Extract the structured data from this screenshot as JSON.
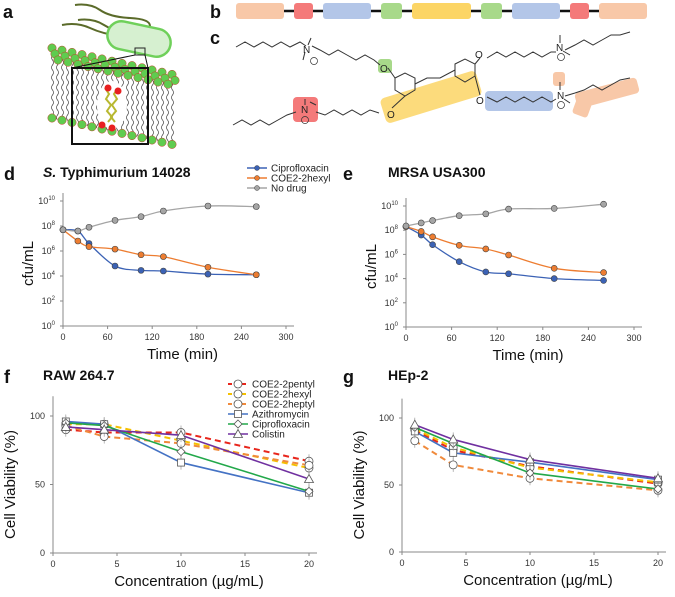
{
  "panels": {
    "a": {
      "letter": "a"
    },
    "b": {
      "letter": "b",
      "blocks": [
        {
          "name": "hexyl-tail",
          "color": "#f8c8a8"
        },
        {
          "name": "ammonium",
          "color": "#f47a7a"
        },
        {
          "name": "linker",
          "color": "#b3c6e8"
        },
        {
          "name": "ether",
          "color": "#a8d98a"
        },
        {
          "name": "stilbene-core",
          "color": "#fcd565"
        },
        {
          "name": "ether",
          "color": "#a8d98a"
        },
        {
          "name": "linker",
          "color": "#b3c6e8"
        },
        {
          "name": "ammonium",
          "color": "#f47a7a"
        },
        {
          "name": "hexyl-tail",
          "color": "#f8c8a8"
        }
      ]
    },
    "c": {
      "letter": "c",
      "atoms": {
        "oxygen": "O",
        "nitrogen": "N",
        "charge": "+"
      }
    },
    "d": {
      "letter": "d",
      "title_italic": "S.",
      "title_rest": " Typhimurium 14028"
    },
    "e": {
      "letter": "e",
      "title": "MRSA USA300"
    },
    "f": {
      "letter": "f",
      "title": "RAW 264.7"
    },
    "g": {
      "letter": "g",
      "title": "HEp-2"
    }
  },
  "chart_data": [
    {
      "id": "d",
      "type": "line",
      "title": "S. Typhimurium 14028",
      "xlabel": "Time (min)",
      "ylabel": "cfu/mL",
      "yscale": "log",
      "xlim": [
        0,
        300
      ],
      "ylim_exp": [
        0,
        10
      ],
      "xticks": [
        "0",
        "60",
        "120",
        "180",
        "240",
        "300"
      ],
      "yticks": [
        "10",
        "10",
        "10",
        "10",
        "10",
        "10"
      ],
      "ytick_exps": [
        "0",
        "2",
        "4",
        "6",
        "8",
        "10"
      ],
      "legend": "top-right",
      "series": [
        {
          "name": "Ciprofloxacin",
          "color": "#3b62b5",
          "x": [
            0,
            20,
            35,
            70,
            105,
            135,
            195,
            260
          ],
          "log10_y": [
            7.7,
            7.6,
            6.6,
            4.8,
            4.45,
            4.4,
            4.15,
            4.1
          ]
        },
        {
          "name": "COE2-2hexyl",
          "color": "#ed7d31",
          "x": [
            0,
            20,
            35,
            70,
            105,
            135,
            195,
            260
          ],
          "log10_y": [
            7.7,
            6.8,
            6.35,
            6.15,
            5.7,
            5.55,
            4.7,
            4.1
          ]
        },
        {
          "name": "No drug",
          "color": "#a5a5a5",
          "x": [
            0,
            20,
            35,
            70,
            105,
            135,
            195,
            260
          ],
          "log10_y": [
            7.7,
            7.6,
            7.9,
            8.45,
            8.75,
            9.2,
            9.6,
            9.55
          ]
        }
      ]
    },
    {
      "id": "e",
      "type": "line",
      "title": "MRSA USA300",
      "xlabel": "Time (min)",
      "ylabel": "cfu/mL",
      "yscale": "log",
      "xlim": [
        0,
        300
      ],
      "ylim_exp": [
        0,
        10
      ],
      "xticks": [
        "0",
        "60",
        "120",
        "180",
        "240",
        "300"
      ],
      "yticks": [
        "10",
        "10",
        "10",
        "10",
        "10",
        "10"
      ],
      "ytick_exps": [
        "0",
        "2",
        "4",
        "6",
        "8",
        "10"
      ],
      "series": [
        {
          "name": "Ciprofloxacin",
          "color": "#3b62b5",
          "x": [
            0,
            20,
            35,
            70,
            105,
            135,
            195,
            260
          ],
          "log10_y": [
            8.3,
            7.6,
            6.8,
            5.4,
            4.55,
            4.4,
            4.0,
            3.85
          ]
        },
        {
          "name": "COE2-2hexyl",
          "color": "#ed7d31",
          "x": [
            0,
            20,
            35,
            70,
            105,
            135,
            195,
            260
          ],
          "log10_y": [
            8.3,
            7.9,
            7.45,
            6.75,
            6.45,
            5.95,
            4.85,
            4.5
          ]
        },
        {
          "name": "No drug",
          "color": "#a5a5a5",
          "x": [
            0,
            20,
            35,
            70,
            105,
            135,
            195,
            260
          ],
          "log10_y": [
            8.35,
            8.6,
            8.8,
            9.2,
            9.35,
            9.75,
            9.8,
            10.15
          ]
        }
      ]
    },
    {
      "id": "f",
      "type": "line",
      "title": "RAW 264.7",
      "xlabel": "Concentration (µg/mL)",
      "ylabel": "Cell Viability (%)",
      "xlim": [
        0,
        20
      ],
      "ylim": [
        0,
        110
      ],
      "xticks": [
        "0",
        "5",
        "10",
        "15",
        "20"
      ],
      "yticks": [
        "0",
        "50",
        "100"
      ],
      "legend": "top-right",
      "series": [
        {
          "name": "COE2-2pentyl",
          "color": "#e8261c",
          "dash": true,
          "marker": "circle",
          "x": [
            1,
            4,
            10,
            20
          ],
          "y": [
            90,
            88,
            88,
            67
          ]
        },
        {
          "name": "COE2-2hexyl",
          "color": "#f5c000",
          "dash": true,
          "marker": "circle",
          "x": [
            1,
            4,
            10,
            20
          ],
          "y": [
            94,
            94,
            82,
            62
          ]
        },
        {
          "name": "COE2-2heptyl",
          "color": "#f08a3c",
          "dash": true,
          "marker": "circle",
          "x": [
            1,
            4,
            10,
            20
          ],
          "y": [
            93,
            85,
            80,
            64
          ]
        },
        {
          "name": "Azithromycin",
          "color": "#4472c4",
          "dash": false,
          "marker": "square",
          "x": [
            1,
            4,
            10,
            20
          ],
          "y": [
            96,
            94,
            66,
            44
          ]
        },
        {
          "name": "Ciprofloxacin",
          "color": "#22a84a",
          "dash": false,
          "marker": "diamond",
          "x": [
            1,
            4,
            10,
            20
          ],
          "y": [
            95,
            93,
            74,
            45
          ]
        },
        {
          "name": "Colistin",
          "color": "#7030a0",
          "dash": false,
          "marker": "triangle",
          "x": [
            1,
            4,
            10,
            20
          ],
          "y": [
            92,
            90,
            86,
            54
          ]
        }
      ]
    },
    {
      "id": "g",
      "type": "line",
      "title": "HEp-2",
      "xlabel": "Concentration (µg/mL)",
      "ylabel": "Cell Viability (%)",
      "xlim": [
        0,
        20
      ],
      "ylim": [
        0,
        110
      ],
      "xticks": [
        "0",
        "5",
        "10",
        "15",
        "20"
      ],
      "yticks": [
        "0",
        "50",
        "100"
      ],
      "series": [
        {
          "name": "COE2-2pentyl",
          "color": "#e8261c",
          "dash": true,
          "marker": "circle",
          "x": [
            1,
            4,
            10,
            20
          ],
          "y": [
            91,
            76,
            64,
            51
          ]
        },
        {
          "name": "COE2-2hexyl",
          "color": "#f5c000",
          "dash": true,
          "marker": "circle",
          "x": [
            1,
            4,
            10,
            20
          ],
          "y": [
            92,
            78,
            63,
            52
          ]
        },
        {
          "name": "COE2-2heptyl",
          "color": "#f08a3c",
          "dash": true,
          "marker": "circle",
          "x": [
            1,
            4,
            10,
            20
          ],
          "y": [
            83,
            65,
            55,
            46
          ]
        },
        {
          "name": "Azithromycin",
          "color": "#4472c4",
          "dash": false,
          "marker": "square",
          "x": [
            1,
            4,
            10,
            20
          ],
          "y": [
            90,
            74,
            67,
            54
          ]
        },
        {
          "name": "Ciprofloxacin",
          "color": "#22a84a",
          "dash": false,
          "marker": "diamond",
          "x": [
            1,
            4,
            10,
            20
          ],
          "y": [
            93,
            81,
            59,
            47
          ]
        },
        {
          "name": "Colistin",
          "color": "#7030a0",
          "dash": false,
          "marker": "triangle",
          "x": [
            1,
            4,
            10,
            20
          ],
          "y": [
            95,
            84,
            69,
            55
          ]
        }
      ]
    }
  ]
}
